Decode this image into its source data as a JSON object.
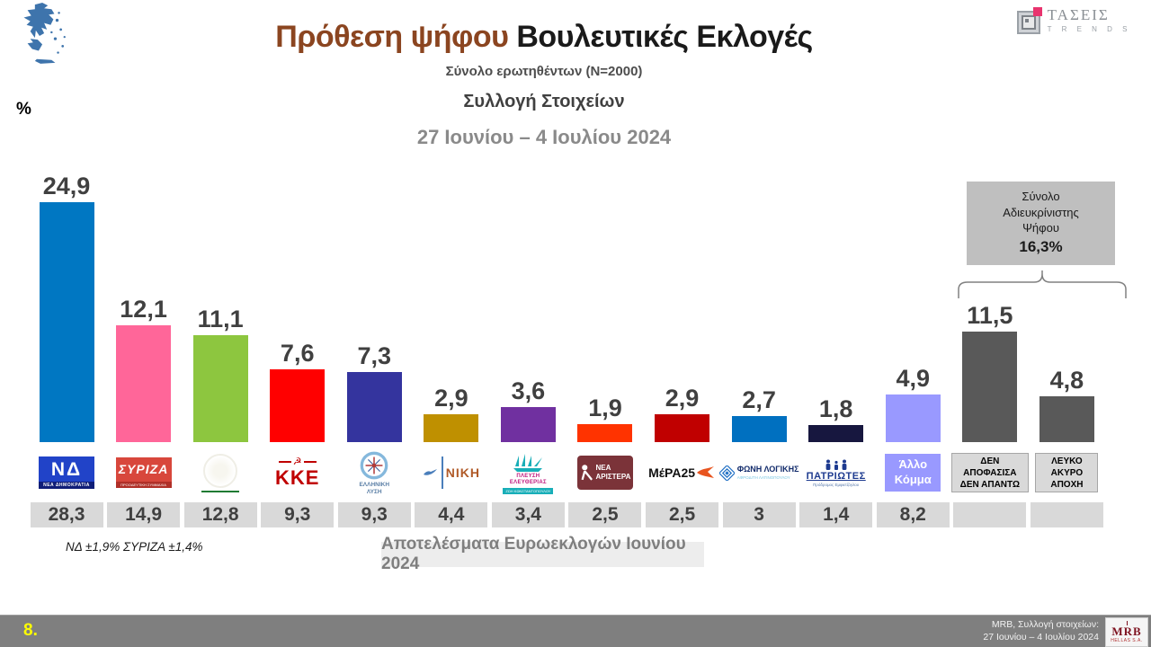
{
  "header": {
    "title_accent": "Πρόθεση ψήφου",
    "title_rest": " Βουλευτικές Εκλογές",
    "subtitle": "Σύνολο ερωτηθέντων (N=2000)",
    "collection_label": "Συλλογή Στοιχείων",
    "date_range": "27 Ιουνίου – 4 Ιουλίου 2024",
    "percent_label": "%",
    "brand": {
      "name": "ΤΑΣΕΙΣ",
      "sub": "T R E N D S"
    }
  },
  "undecided_box": {
    "line1": "Σύνολο",
    "line2": "Αδιευκρίνιστης",
    "line3": "Ψήφου",
    "value": "16,3%"
  },
  "chart_data": {
    "type": "bar",
    "title": "Πρόθεση ψήφου Βουλευτικές Εκλογές",
    "unit": "%",
    "ylim": [
      0,
      26
    ],
    "grid": false,
    "categories": [
      "nd",
      "syriza",
      "pasok",
      "kke",
      "elliniki-lysi",
      "niki",
      "plefsi-eleftherias",
      "nea-aristera",
      "mera25",
      "foni-logikis",
      "patriotes",
      "allo-komma",
      "den-apofasisa-den-apanto",
      "lefko-akyro-apochi"
    ],
    "series_note": "second row = Αποτελέσματα Ευρωεκλογών Ιουνίου 2024",
    "parties": [
      {
        "key": "nd",
        "value": 24.9,
        "value_label": "24,9",
        "euro": "28,3",
        "color": "#0077C2",
        "logo": {
          "text": "ΝΔ",
          "sub": "ΝΕΑ ΔΗΜΟΚΡΑΤΙΑ"
        }
      },
      {
        "key": "syriza",
        "value": 12.1,
        "value_label": "12,1",
        "euro": "14,9",
        "color": "#FF6699",
        "logo": {
          "text": "ΣΥΡΙΖΑ",
          "sub": "ΠΡΟΟΔΕΥΤΙΚΗ ΣΥΜΜΑΧΙΑ"
        }
      },
      {
        "key": "pasok",
        "value": 11.1,
        "value_label": "11,1",
        "euro": "12,8",
        "color": "#8DC63F",
        "logo": {}
      },
      {
        "key": "kke",
        "value": 7.6,
        "value_label": "7,6",
        "euro": "9,3",
        "color": "#FF0000",
        "logo": {
          "text": "ΚΚΕ",
          "symbol": "☭"
        }
      },
      {
        "key": "elliniki-lysi",
        "value": 7.3,
        "value_label": "7,3",
        "euro": "9,3",
        "color": "#34349E",
        "logo": {
          "line1": "ΕΛΛΗΝΙΚΗ",
          "line2": "ΛΥΣΗ"
        }
      },
      {
        "key": "niki",
        "value": 2.9,
        "value_label": "2,9",
        "euro": "4,4",
        "color": "#BF9000",
        "logo": {
          "text": "ΝΙΚΗ"
        }
      },
      {
        "key": "plefsi-eleftherias",
        "value": 3.6,
        "value_label": "3,6",
        "euro": "3,4",
        "color": "#7030A0",
        "logo": {
          "line1": "ΠΛΕΥΣΗ",
          "line2": "ΕΛΕΥΘΕΡΙΑΣ",
          "sub": "ΖΩΗ ΚΩΝΣΤΑΝΤΟΠΟΥΛΟΥ"
        }
      },
      {
        "key": "nea-aristera",
        "value": 1.9,
        "value_label": "1,9",
        "euro": "2,5",
        "color": "#FF3300",
        "logo": {
          "line1": "ΝΕΑ",
          "line2": "ΑΡΙΣΤΕΡΑ"
        }
      },
      {
        "key": "mera25",
        "value": 2.9,
        "value_label": "2,9",
        "euro": "2,5",
        "color": "#C00000",
        "logo": {
          "text": "ΜέΡΑ25"
        }
      },
      {
        "key": "foni-logikis",
        "value": 2.7,
        "value_label": "2,7",
        "euro": "3",
        "color": "#0070C0",
        "logo": {
          "text": "ΦΩΝΗ ΛΟΓΙΚΗΣ",
          "sub": "ΑΦΡΟΔΙΤΗ ΛΑΤΙΝΟΠΟΥΛΟΥ"
        }
      },
      {
        "key": "patriotes",
        "value": 1.8,
        "value_label": "1,8",
        "euro": "1,4",
        "color": "#17173F",
        "logo": {
          "text": "ΠΑΤΡΙΩΤΕΣ",
          "sub": "Πρόδρομος Εμφιετζόγλου"
        }
      },
      {
        "key": "allo-komma",
        "value": 4.9,
        "value_label": "4,9",
        "euro": "8,2",
        "color": "#9999FF",
        "label_lines": [
          "Άλλο",
          "Κόμμα"
        ]
      },
      {
        "key": "den-apofasisa-den-apanto",
        "value": 11.5,
        "value_label": "11,5",
        "euro": "",
        "color": "#595959",
        "label_lines": [
          "ΔΕΝ",
          "ΑΠΟΦΑΣΙΣΑ",
          "ΔΕΝ ΑΠΑΝΤΩ"
        ]
      },
      {
        "key": "lefko-akyro-apochi",
        "value": 4.8,
        "value_label": "4,8",
        "euro": "",
        "color": "#595959",
        "label_lines": [
          "ΛΕΥΚΟ",
          "ΑΚΥΡΟ",
          "ΑΠΟΧΗ"
        ]
      }
    ]
  },
  "notes": {
    "margin_of_error": "ΝΔ ±1,9% ΣΥΡΙΖΑ ±1,4%",
    "euro_results_label": "Αποτελέσματα Ευρωεκλογών Ιουνίου 2024"
  },
  "footer": {
    "page": "8.",
    "source_line1": "MRB, Συλλογή στοιχείων:",
    "source_line2": "27 Ιουνίου – 4 Ιουλίου 2024",
    "logo_text": "MRB",
    "logo_sub": "HELLAS S.A."
  },
  "colors": {
    "title_accent": "#8B4520",
    "footer_bar": "#7F7F7F",
    "undecided_box_bg": "#BFBFBF",
    "euro_cell_bg": "#D9D9D9",
    "page_number": "#FFFF00"
  }
}
